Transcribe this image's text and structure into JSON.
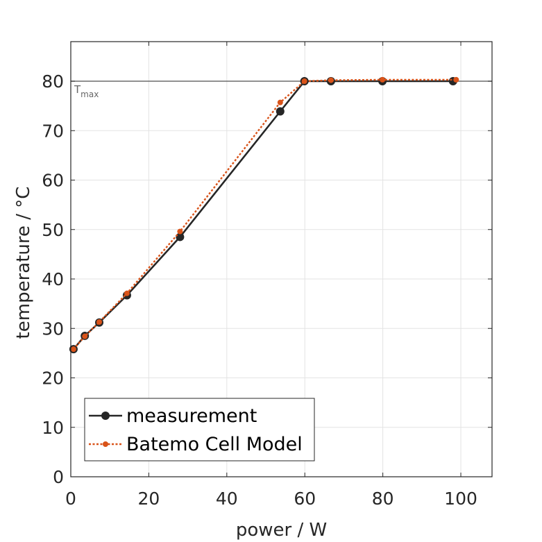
{
  "chart_data": {
    "type": "line",
    "xlabel": "power / W",
    "ylabel": "temperature / °C",
    "xlim": [
      0,
      108
    ],
    "ylim": [
      0,
      88
    ],
    "xticks": [
      0,
      20,
      40,
      60,
      80,
      100
    ],
    "yticks": [
      0,
      10,
      20,
      30,
      40,
      50,
      60,
      70,
      80
    ],
    "grid": true,
    "legend_position": "bottom-left",
    "annotation": {
      "text": "T",
      "subscript": "max",
      "y": 80,
      "color": "#666666"
    },
    "series": [
      {
        "name": "measurement",
        "color": "#262626",
        "line_style": "solid",
        "x": [
          0.7,
          3.6,
          7.3,
          14.4,
          28.0,
          53.7,
          59.9,
          66.7,
          79.9,
          98.0
        ],
        "y": [
          25.8,
          28.5,
          31.2,
          36.7,
          48.5,
          73.9,
          80.0,
          80.0,
          80.0,
          80.0
        ]
      },
      {
        "name": "Batemo Cell Model",
        "color": "#D95319",
        "line_style": "dotted",
        "x": [
          0.7,
          3.6,
          7.3,
          14.4,
          28.0,
          53.7,
          59.9,
          66.7,
          79.9,
          98.8
        ],
        "y": [
          25.8,
          28.4,
          31.3,
          37.1,
          49.6,
          75.7,
          80.0,
          80.2,
          80.3,
          80.3
        ]
      }
    ]
  }
}
